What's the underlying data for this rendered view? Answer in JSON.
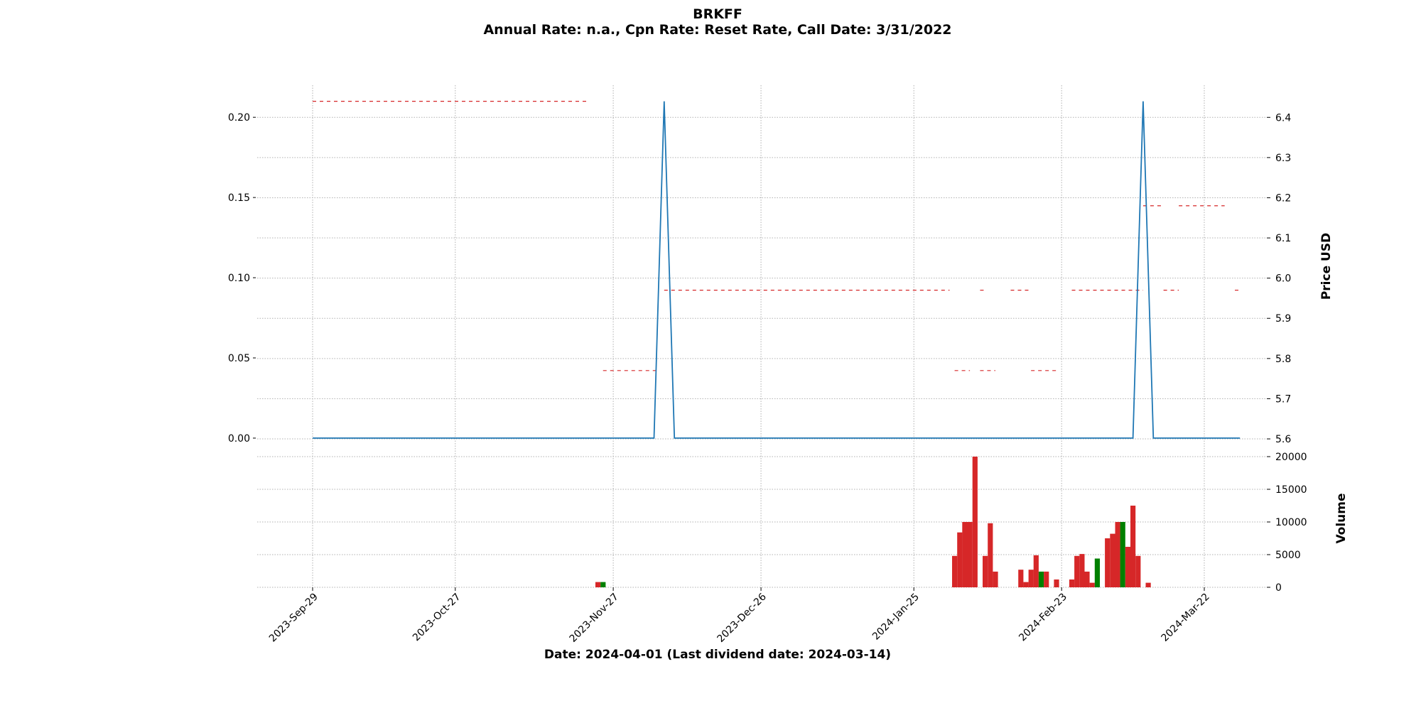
{
  "chart_data": {
    "type": "line",
    "title": "BRKFF",
    "subtitle": "Annual Rate: n.a., Cpn Rate: Reset Rate, Call Date: 3/31/2022",
    "xlabel": "Date: 2024-04-01   (Last dividend date: 2024-03-14)",
    "grid": true,
    "x_range": [
      "2023-09-29",
      "2024-03-28"
    ],
    "x_ticks": [
      "2023-Sep-29",
      "2023-Oct-27",
      "2023-Nov-27",
      "2023-Dec-26",
      "2024-Jan-25",
      "2024-Feb-23",
      "2024-Mar-22"
    ],
    "left_axis": {
      "ylim": [
        -0.008,
        0.22
      ],
      "ticks": [
        "0.00",
        "0.05",
        "0.10",
        "0.15",
        "0.20"
      ]
    },
    "right_axis": {
      "ylabel": "Price USD",
      "ylim": [
        5.57,
        6.48
      ],
      "ticks": [
        "5.6",
        "5.7",
        "5.8",
        "5.9",
        "6.0",
        "6.1",
        "6.2",
        "6.3",
        "6.4"
      ]
    },
    "volume_axis": {
      "ylabel": "Volume",
      "ylim": [
        0,
        20000
      ],
      "ticks": [
        "0",
        "5000",
        "10000",
        "15000",
        "20000"
      ]
    },
    "dividend_series": {
      "color": "#1f77b4",
      "points": [
        [
          "2023-09-29",
          0
        ],
        [
          "2023-12-05",
          0
        ],
        [
          "2023-12-07",
          0.21
        ],
        [
          "2023-12-09",
          0
        ],
        [
          "2024-03-08",
          0
        ],
        [
          "2024-03-10",
          0.21
        ],
        [
          "2024-03-12",
          0
        ],
        [
          "2024-03-29",
          0
        ]
      ]
    },
    "price_segments": {
      "color": "#d62728",
      "segments": [
        {
          "start": "2023-09-29",
          "end": "2023-11-22",
          "price": 6.44
        },
        {
          "start": "2023-11-25",
          "end": "2023-12-06",
          "price": 5.77
        },
        {
          "start": "2023-12-07",
          "end": "2024-02-01",
          "price": 5.97
        },
        {
          "start": "2024-02-02",
          "end": "2024-02-05",
          "price": 5.77
        },
        {
          "start": "2024-02-07",
          "end": "2024-02-08",
          "price": 5.97
        },
        {
          "start": "2024-02-07",
          "end": "2024-02-10",
          "price": 5.77
        },
        {
          "start": "2024-02-13",
          "end": "2024-02-17",
          "price": 5.97
        },
        {
          "start": "2024-02-17",
          "end": "2024-02-22",
          "price": 5.77
        },
        {
          "start": "2024-02-25",
          "end": "2024-03-10",
          "price": 5.97
        },
        {
          "start": "2024-03-10",
          "end": "2024-03-14",
          "price": 6.18
        },
        {
          "start": "2024-03-14",
          "end": "2024-03-17",
          "price": 5.97
        },
        {
          "start": "2024-03-17",
          "end": "2024-03-26",
          "price": 6.18
        },
        {
          "start": "2024-03-28",
          "end": "2024-03-29",
          "price": 5.97
        }
      ]
    },
    "volume_bars": [
      {
        "date": "2023-11-24",
        "value": 800,
        "color": "#d62728"
      },
      {
        "date": "2023-11-25",
        "value": 800,
        "color": "#008000"
      },
      {
        "date": "2024-02-02",
        "value": 4800,
        "color": "#d62728"
      },
      {
        "date": "2024-02-03",
        "value": 8400,
        "color": "#d62728"
      },
      {
        "date": "2024-02-04",
        "value": 10000,
        "color": "#d62728"
      },
      {
        "date": "2024-02-05",
        "value": 10000,
        "color": "#d62728"
      },
      {
        "date": "2024-02-06",
        "value": 20000,
        "color": "#d62728"
      },
      {
        "date": "2024-02-08",
        "value": 4800,
        "color": "#d62728"
      },
      {
        "date": "2024-02-09",
        "value": 9800,
        "color": "#d62728"
      },
      {
        "date": "2024-02-10",
        "value": 2400,
        "color": "#d62728"
      },
      {
        "date": "2024-02-15",
        "value": 2700,
        "color": "#d62728"
      },
      {
        "date": "2024-02-16",
        "value": 800,
        "color": "#d62728"
      },
      {
        "date": "2024-02-17",
        "value": 2700,
        "color": "#d62728"
      },
      {
        "date": "2024-02-18",
        "value": 4900,
        "color": "#d62728"
      },
      {
        "date": "2024-02-19",
        "value": 2400,
        "color": "#008000"
      },
      {
        "date": "2024-02-20",
        "value": 2400,
        "color": "#d62728"
      },
      {
        "date": "2024-02-22",
        "value": 1200,
        "color": "#d62728"
      },
      {
        "date": "2024-02-25",
        "value": 1200,
        "color": "#d62728"
      },
      {
        "date": "2024-02-26",
        "value": 4800,
        "color": "#d62728"
      },
      {
        "date": "2024-02-27",
        "value": 5100,
        "color": "#d62728"
      },
      {
        "date": "2024-02-28",
        "value": 2400,
        "color": "#d62728"
      },
      {
        "date": "2024-02-29",
        "value": 700,
        "color": "#d62728"
      },
      {
        "date": "2024-03-01",
        "value": 4400,
        "color": "#008000"
      },
      {
        "date": "2024-03-03",
        "value": 7500,
        "color": "#d62728"
      },
      {
        "date": "2024-03-04",
        "value": 8200,
        "color": "#d62728"
      },
      {
        "date": "2024-03-05",
        "value": 10000,
        "color": "#d62728"
      },
      {
        "date": "2024-03-06",
        "value": 10000,
        "color": "#008000"
      },
      {
        "date": "2024-03-07",
        "value": 6200,
        "color": "#d62728"
      },
      {
        "date": "2024-03-08",
        "value": 12500,
        "color": "#d62728"
      },
      {
        "date": "2024-03-09",
        "value": 4800,
        "color": "#d62728"
      },
      {
        "date": "2024-03-11",
        "value": 700,
        "color": "#d62728"
      }
    ]
  }
}
